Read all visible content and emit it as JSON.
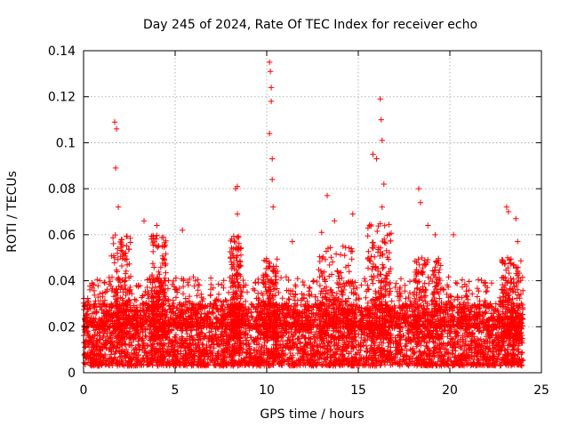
{
  "chart_data": {
    "type": "scatter",
    "title": "Day 245 of 2024, Rate Of TEC Index for receiver echo",
    "xlabel": "GPS time / hours",
    "ylabel": "ROTI / TECUs",
    "xlim": [
      0,
      25
    ],
    "ylim": [
      0,
      0.14
    ],
    "x_ticks": [
      "0",
      "5",
      "10",
      "15",
      "20",
      "25"
    ],
    "y_ticks": [
      "0",
      "0.02",
      "0.04",
      "0.06",
      "0.08",
      "0.1",
      "0.12",
      "0.14"
    ],
    "grid": true,
    "marker": "+",
    "color": "#ff0000",
    "time_range_hours": [
      0,
      24
    ],
    "baseline_range": [
      0.003,
      0.03
    ],
    "peaks": [
      {
        "x": 1.7,
        "y": 0.109
      },
      {
        "x": 1.8,
        "y": 0.106
      },
      {
        "x": 1.75,
        "y": 0.089
      },
      {
        "x": 1.9,
        "y": 0.072
      },
      {
        "x": 2.3,
        "y": 0.052
      },
      {
        "x": 3.3,
        "y": 0.066
      },
      {
        "x": 4.0,
        "y": 0.064
      },
      {
        "x": 5.4,
        "y": 0.062
      },
      {
        "x": 8.3,
        "y": 0.08
      },
      {
        "x": 8.4,
        "y": 0.081
      },
      {
        "x": 8.4,
        "y": 0.069
      },
      {
        "x": 10.15,
        "y": 0.135
      },
      {
        "x": 10.2,
        "y": 0.131
      },
      {
        "x": 10.25,
        "y": 0.124
      },
      {
        "x": 10.25,
        "y": 0.118
      },
      {
        "x": 10.15,
        "y": 0.104
      },
      {
        "x": 10.3,
        "y": 0.093
      },
      {
        "x": 10.3,
        "y": 0.084
      },
      {
        "x": 10.35,
        "y": 0.072
      },
      {
        "x": 11.4,
        "y": 0.057
      },
      {
        "x": 13.0,
        "y": 0.061
      },
      {
        "x": 13.3,
        "y": 0.077
      },
      {
        "x": 13.7,
        "y": 0.066
      },
      {
        "x": 14.7,
        "y": 0.069
      },
      {
        "x": 15.8,
        "y": 0.095
      },
      {
        "x": 16.0,
        "y": 0.093
      },
      {
        "x": 16.2,
        "y": 0.119
      },
      {
        "x": 16.25,
        "y": 0.11
      },
      {
        "x": 16.3,
        "y": 0.101
      },
      {
        "x": 16.4,
        "y": 0.082
      },
      {
        "x": 16.3,
        "y": 0.072
      },
      {
        "x": 18.3,
        "y": 0.08
      },
      {
        "x": 18.4,
        "y": 0.074
      },
      {
        "x": 18.8,
        "y": 0.064
      },
      {
        "x": 19.2,
        "y": 0.06
      },
      {
        "x": 20.2,
        "y": 0.06
      },
      {
        "x": 23.1,
        "y": 0.072
      },
      {
        "x": 23.2,
        "y": 0.07
      },
      {
        "x": 23.6,
        "y": 0.067
      },
      {
        "x": 23.7,
        "y": 0.057
      }
    ],
    "activity_bands": [
      {
        "x_range": [
          1.5,
          2.6
        ],
        "max": 0.06
      },
      {
        "x_range": [
          3.7,
          4.5
        ],
        "max": 0.06
      },
      {
        "x_range": [
          8.0,
          8.6
        ],
        "max": 0.06
      },
      {
        "x_range": [
          9.8,
          10.6
        ],
        "max": 0.05
      },
      {
        "x_range": [
          12.8,
          14.8
        ],
        "max": 0.055
      },
      {
        "x_range": [
          15.5,
          16.8
        ],
        "max": 0.065
      },
      {
        "x_range": [
          18.0,
          19.5
        ],
        "max": 0.05
      },
      {
        "x_range": [
          22.8,
          23.9
        ],
        "max": 0.05
      }
    ]
  }
}
